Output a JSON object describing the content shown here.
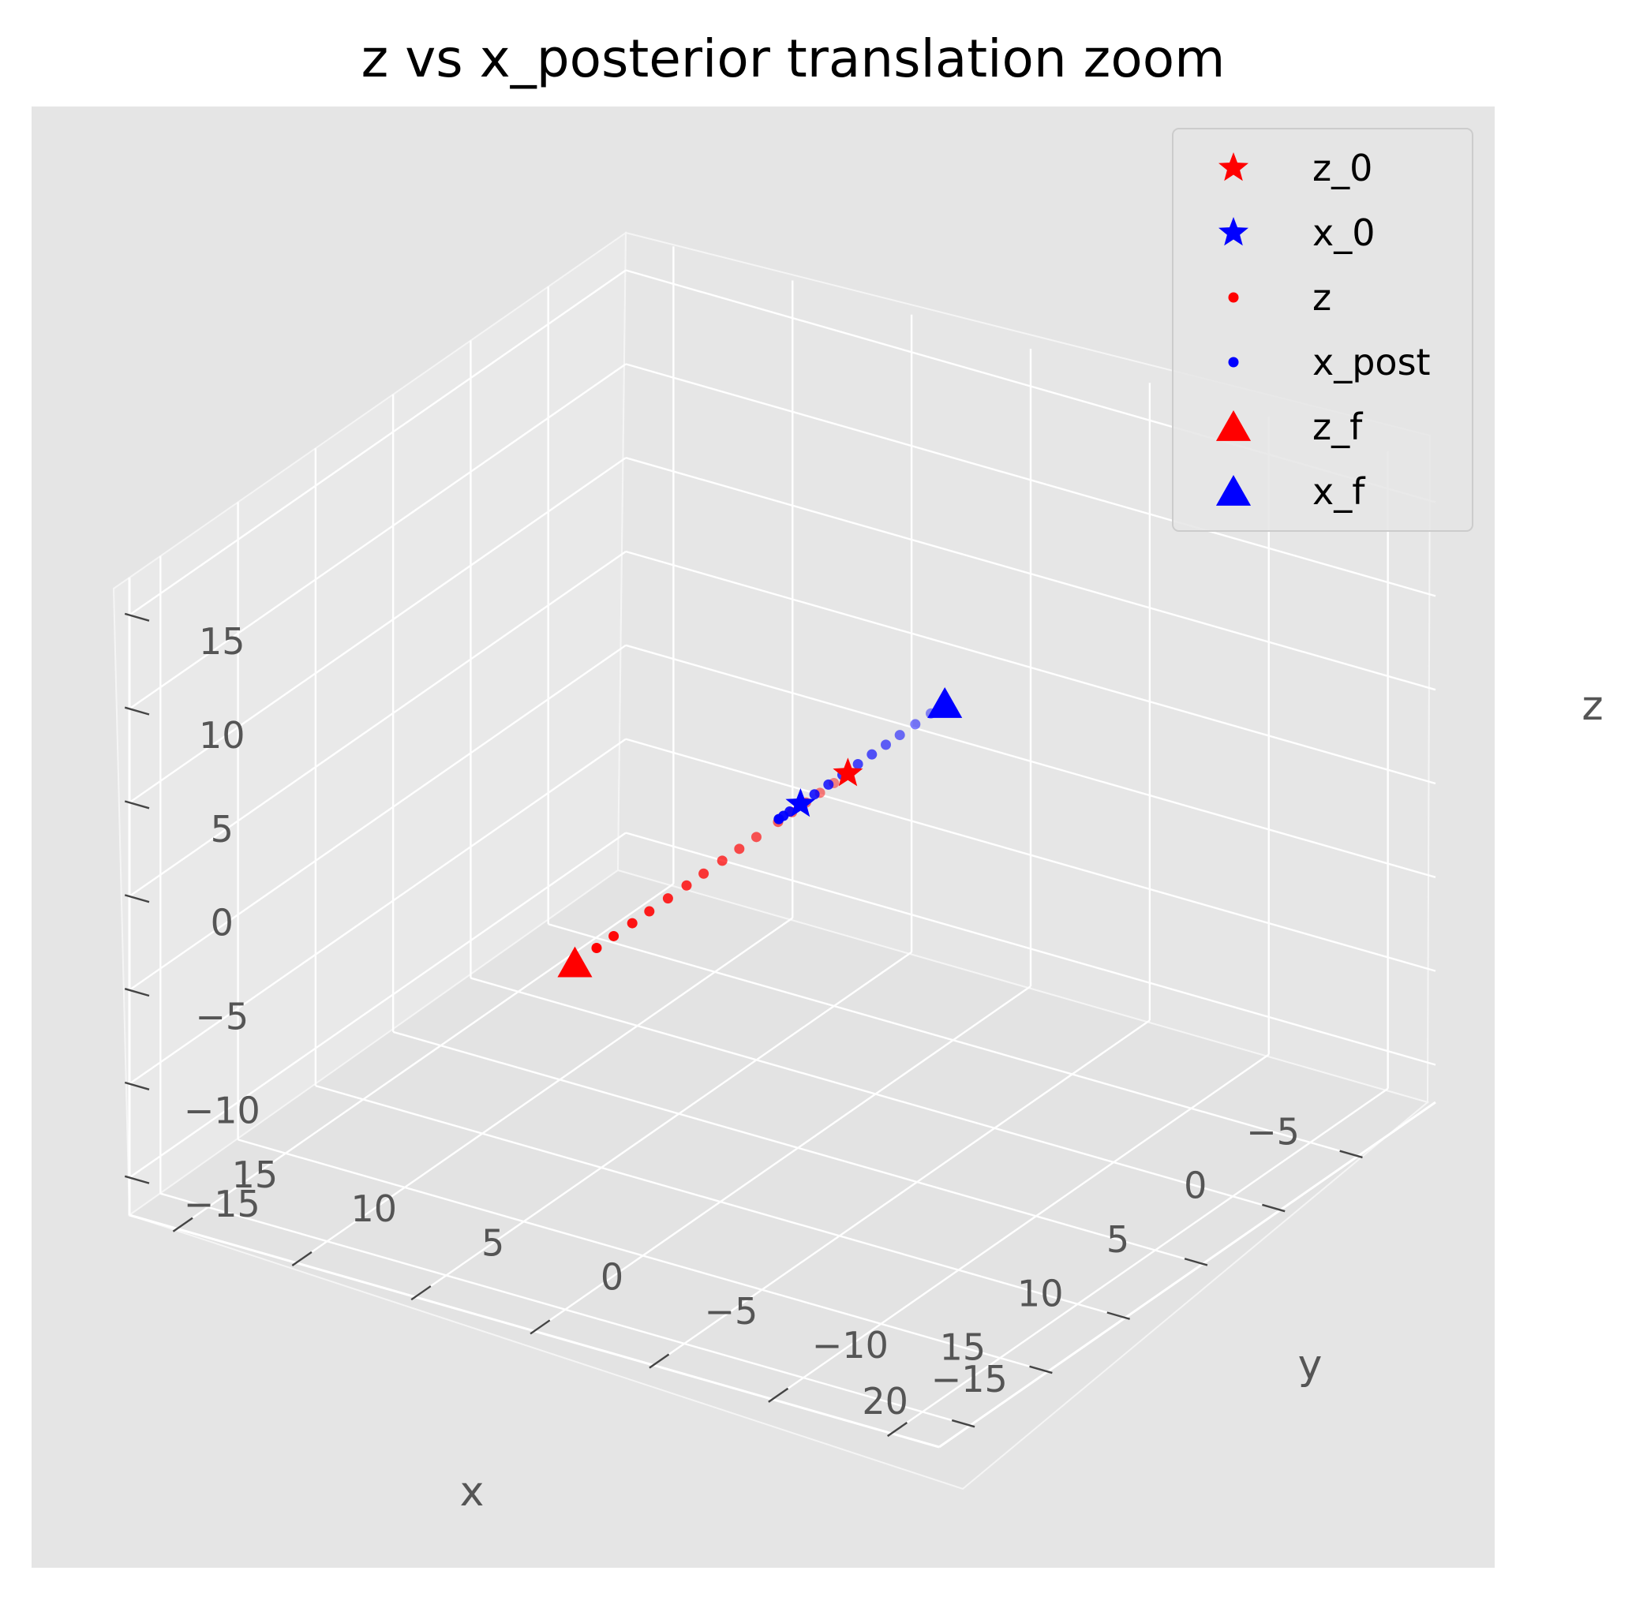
{
  "chart_data": {
    "type": "scatter",
    "projection": "3d",
    "title": "z vs x_posterior translation zoom",
    "xlabel": "x",
    "ylabel": "y",
    "zlabel": "z",
    "xlim": [
      -10,
      22
    ],
    "ylim": [
      -17,
      17
    ],
    "zlim": [
      -17,
      17
    ],
    "xticks": [
      "−5",
      "0",
      "5",
      "10",
      "15",
      "20"
    ],
    "yticks": [
      "−15",
      "−10",
      "−5",
      "0",
      "5",
      "10",
      "15"
    ],
    "zticks": [
      "−15",
      "−10",
      "−5",
      "0",
      "5",
      "10",
      "15"
    ],
    "grid": true,
    "background": "#e5e5e5",
    "legend": {
      "position": "top-right",
      "entries": [
        {
          "label": "z_0",
          "marker": "star",
          "color": "#ff0000"
        },
        {
          "label": "x_0",
          "marker": "star",
          "color": "#0000ff"
        },
        {
          "label": "z",
          "marker": "dot",
          "color": "#ff0000"
        },
        {
          "label": "x_post",
          "marker": "dot",
          "color": "#0000ff"
        },
        {
          "label": "z_f",
          "marker": "triangle",
          "color": "#ff0000"
        },
        {
          "label": "x_f",
          "marker": "triangle",
          "color": "#0000ff"
        }
      ]
    },
    "series": [
      {
        "name": "z_0",
        "marker": "star",
        "color": "#ff0000",
        "points": [
          [
            0.4,
            0.9,
            0.0
          ]
        ]
      },
      {
        "name": "x_0",
        "marker": "star",
        "color": "#0000ff",
        "points": [
          [
            3.3,
            1.0,
            0.0
          ]
        ]
      },
      {
        "name": "z",
        "marker": "dot",
        "color": "#ff0000",
        "points": [
          [
            1.3,
            0.9,
            0.0
          ],
          [
            2.2,
            0.9,
            0.0
          ],
          [
            3.1,
            0.9,
            0.0
          ],
          [
            4.0,
            0.9,
            0.0
          ],
          [
            4.9,
            0.9,
            0.0
          ],
          [
            6.3,
            0.9,
            0.0
          ],
          [
            7.4,
            0.9,
            0.0
          ],
          [
            8.5,
            0.9,
            0.0
          ],
          [
            9.7,
            0.9,
            0.0
          ],
          [
            10.8,
            0.9,
            0.0
          ],
          [
            12.0,
            0.9,
            0.0
          ],
          [
            13.2,
            0.9,
            0.0
          ],
          [
            14.3,
            0.9,
            0.0
          ],
          [
            15.5,
            0.9,
            0.0
          ],
          [
            16.6,
            0.9,
            0.0
          ]
        ]
      },
      {
        "name": "x_post",
        "marker": "dot",
        "color": "#0000ff",
        "points": [
          [
            -5.1,
            1.0,
            0.0
          ],
          [
            -4.1,
            1.0,
            0.0
          ],
          [
            -3.1,
            1.0,
            0.0
          ],
          [
            -2.2,
            1.0,
            0.0
          ],
          [
            -1.3,
            1.0,
            0.0
          ],
          [
            -0.4,
            1.0,
            0.0
          ],
          [
            0.6,
            1.0,
            0.0
          ],
          [
            1.5,
            1.0,
            0.0
          ],
          [
            2.4,
            1.0,
            0.0
          ],
          [
            4.0,
            1.0,
            0.0
          ],
          [
            4.4,
            1.0,
            0.0
          ],
          [
            4.7,
            1.0,
            0.0
          ]
        ]
      },
      {
        "name": "z_f",
        "marker": "triangle",
        "color": "#ff0000",
        "points": [
          [
            18.0,
            0.9,
            0.0
          ]
        ]
      },
      {
        "name": "x_f",
        "marker": "triangle",
        "color": "#0000ff",
        "points": [
          [
            -6.0,
            1.0,
            0.0
          ]
        ]
      }
    ]
  }
}
